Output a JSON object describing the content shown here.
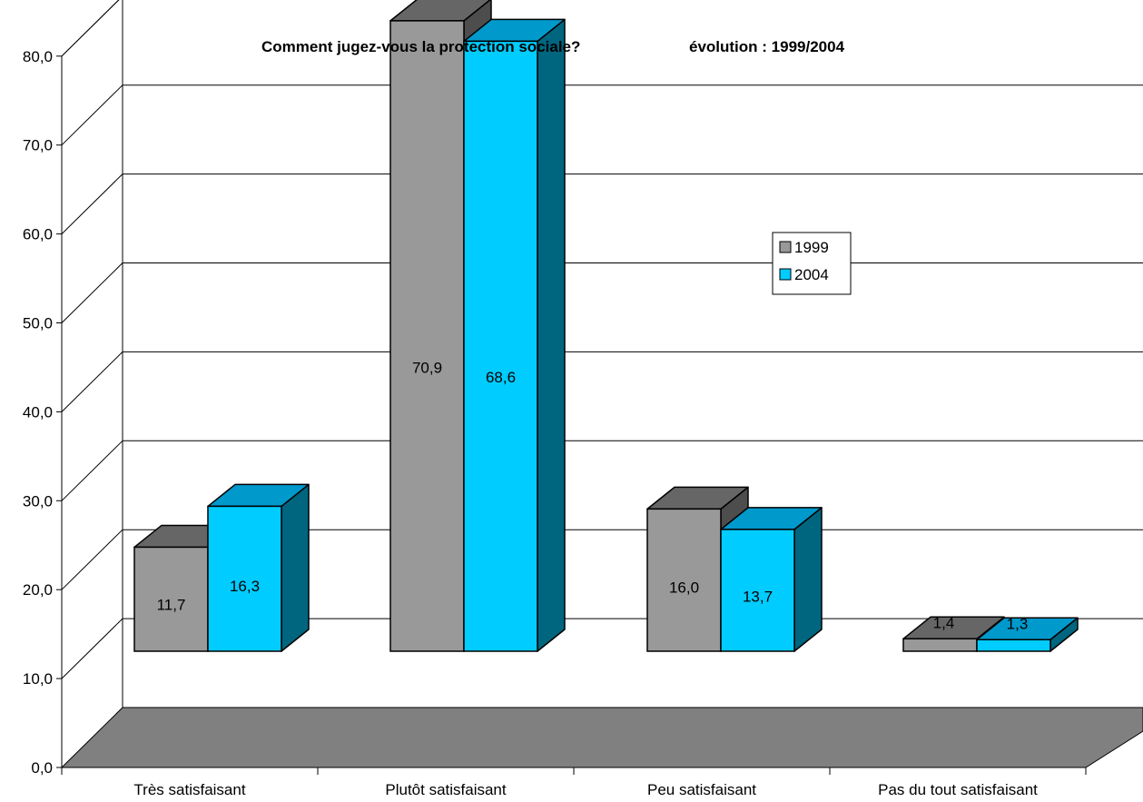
{
  "chart_data": {
    "type": "bar",
    "title": "Comment jugez-vous la protection sociale?",
    "subtitle": "évolution : 1999/2004",
    "categories": [
      "Très satisfaisant",
      "Plutôt satisfaisant",
      "Peu satisfaisant",
      "Pas du tout satisfaisant"
    ],
    "series": [
      {
        "name": "1999",
        "values": [
          11.7,
          70.9,
          16.0,
          1.4
        ],
        "labels": [
          "11,7",
          "70,9",
          "16,0",
          "1,4"
        ],
        "color": "#999999",
        "top_color": "#666666",
        "side_color": "#4d4d4d"
      },
      {
        "name": "2004",
        "values": [
          16.3,
          68.6,
          13.7,
          1.3
        ],
        "labels": [
          "16,3",
          "68,6",
          "13,7",
          "1,3"
        ],
        "color": "#00ccff",
        "top_color": "#0099cc",
        "side_color": "#006680"
      }
    ],
    "ylim": [
      0,
      80
    ],
    "yticks": [
      "0,0",
      "10,0",
      "20,0",
      "30,0",
      "40,0",
      "50,0",
      "60,0",
      "70,0",
      "80,0"
    ],
    "grid": true,
    "legend_position": "right",
    "style": "3d-clustered-column",
    "floor_color": "#808080"
  }
}
